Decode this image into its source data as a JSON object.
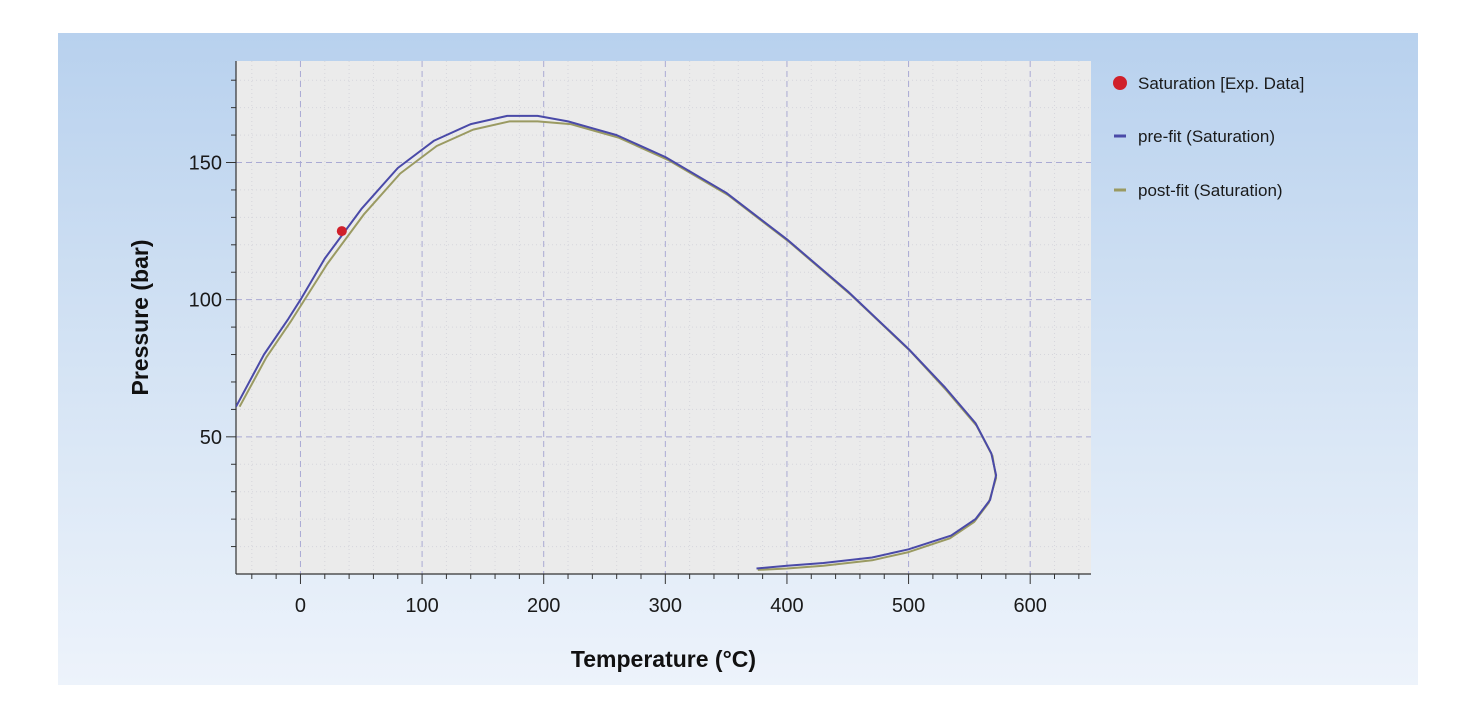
{
  "chart_data": {
    "type": "line",
    "xlabel": "Temperature (°C)",
    "ylabel": "Pressure (bar)",
    "xlim": [
      -53,
      650
    ],
    "ylim": [
      0,
      187
    ],
    "x_ticks": [
      0,
      100,
      200,
      300,
      400,
      500,
      600
    ],
    "y_ticks": [
      50,
      100,
      150
    ],
    "grid": true,
    "legend": {
      "placement": "right"
    },
    "series": [
      {
        "name": "Saturation [Exp. Data]",
        "kind": "scatter",
        "color": "#d0202a",
        "points": [
          [
            34,
            125
          ]
        ]
      },
      {
        "name": "pre-fit (Saturation)",
        "kind": "line",
        "color": "#4a4aa8",
        "points": [
          [
            -53,
            61
          ],
          [
            -30,
            80
          ],
          [
            -10,
            93
          ],
          [
            0,
            100
          ],
          [
            20,
            115
          ],
          [
            50,
            133
          ],
          [
            80,
            148
          ],
          [
            110,
            158
          ],
          [
            140,
            164
          ],
          [
            170,
            167
          ],
          [
            195,
            167
          ],
          [
            220,
            165
          ],
          [
            260,
            160
          ],
          [
            300,
            152
          ],
          [
            350,
            139
          ],
          [
            400,
            122
          ],
          [
            450,
            103
          ],
          [
            500,
            82
          ],
          [
            530,
            68
          ],
          [
            555,
            55
          ],
          [
            568,
            44
          ],
          [
            572,
            36
          ],
          [
            567,
            27
          ],
          [
            555,
            20
          ],
          [
            535,
            14
          ],
          [
            500,
            9
          ],
          [
            470,
            6
          ],
          [
            430,
            4
          ],
          [
            400,
            3
          ],
          [
            375,
            2
          ]
        ]
      },
      {
        "name": "post-fit (Saturation)",
        "kind": "line",
        "color": "#9a9a62",
        "points": [
          [
            -50,
            61
          ],
          [
            -28,
            79
          ],
          [
            -8,
            92
          ],
          [
            2,
            99
          ],
          [
            22,
            113
          ],
          [
            52,
            131
          ],
          [
            82,
            146
          ],
          [
            112,
            156
          ],
          [
            142,
            162
          ],
          [
            172,
            165
          ],
          [
            195,
            165
          ],
          [
            222,
            164
          ],
          [
            262,
            159
          ],
          [
            302,
            151
          ],
          [
            352,
            138
          ],
          [
            402,
            121
          ],
          [
            452,
            102
          ],
          [
            502,
            81
          ],
          [
            531,
            67
          ],
          [
            556,
            54
          ],
          [
            569,
            43
          ],
          [
            572,
            35
          ],
          [
            566,
            26
          ],
          [
            554,
            19
          ],
          [
            534,
            13
          ],
          [
            500,
            8
          ],
          [
            470,
            5
          ],
          [
            430,
            3
          ],
          [
            400,
            2
          ],
          [
            376,
            1.5
          ]
        ]
      }
    ]
  }
}
